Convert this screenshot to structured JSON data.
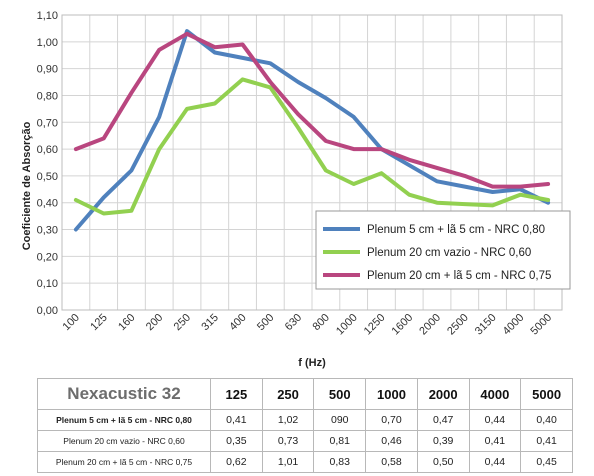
{
  "chart_data": {
    "type": "line",
    "title": "",
    "xlabel": "f (Hz)",
    "ylabel": "Coeficiente de Absorção",
    "categories": [
      "100",
      "125",
      "160",
      "200",
      "250",
      "315",
      "400",
      "500",
      "630",
      "800",
      "1000",
      "1250",
      "1600",
      "2000",
      "2500",
      "3150",
      "4000",
      "5000"
    ],
    "ylim": [
      0,
      1.1
    ],
    "yticks": [
      "0,00",
      "0,10",
      "0,20",
      "0,30",
      "0,40",
      "0,50",
      "0,60",
      "0,70",
      "0,80",
      "0,90",
      "1,00",
      "1,10"
    ],
    "grid": true,
    "legend_position": "right",
    "series": [
      {
        "name": "Plenum 5 cm + lã 5 cm - NRC 0,80",
        "color": "#4f81bd",
        "values": [
          0.3,
          0.42,
          0.52,
          0.72,
          1.04,
          0.96,
          0.94,
          0.92,
          0.85,
          0.79,
          0.72,
          0.6,
          0.54,
          0.48,
          0.46,
          0.44,
          0.45,
          0.4
        ]
      },
      {
        "name": "Plenum 20 cm vazio - NRC 0,60",
        "color": "#92d050",
        "values": [
          0.41,
          0.36,
          0.37,
          0.6,
          0.75,
          0.77,
          0.86,
          0.83,
          0.68,
          0.52,
          0.47,
          0.51,
          0.43,
          0.4,
          0.395,
          0.39,
          0.43,
          0.41
        ]
      },
      {
        "name": "Plenum 20 cm  + lã 5 cm - NRC 0,75",
        "color": "#b9467f",
        "values": [
          0.6,
          0.64,
          0.81,
          0.97,
          1.03,
          0.98,
          0.99,
          0.85,
          0.73,
          0.63,
          0.6,
          0.6,
          0.56,
          0.53,
          0.5,
          0.46,
          0.46,
          0.47
        ]
      }
    ]
  },
  "table": {
    "brand": "Nexacustic 32",
    "headers": [
      "125",
      "250",
      "500",
      "1000",
      "2000",
      "4000",
      "5000"
    ],
    "rows": [
      {
        "label": "Plenum 5 cm + lã 5 cm - NRC 0,80",
        "values": [
          "0,41",
          "1,02",
          "090",
          "0,70",
          "0,47",
          "0,44",
          "0,40"
        ]
      },
      {
        "label": "Plenum 20 cm vazio - NRC 0,60",
        "values": [
          "0,35",
          "0,73",
          "0,81",
          "0,46",
          "0,39",
          "0,41",
          "0,41"
        ]
      },
      {
        "label": "Plenum 20 cm + lã 5 cm - NRC 0,75",
        "values": [
          "0,62",
          "1,01",
          "0,83",
          "0,58",
          "0,50",
          "0,44",
          "0,45"
        ]
      }
    ]
  }
}
